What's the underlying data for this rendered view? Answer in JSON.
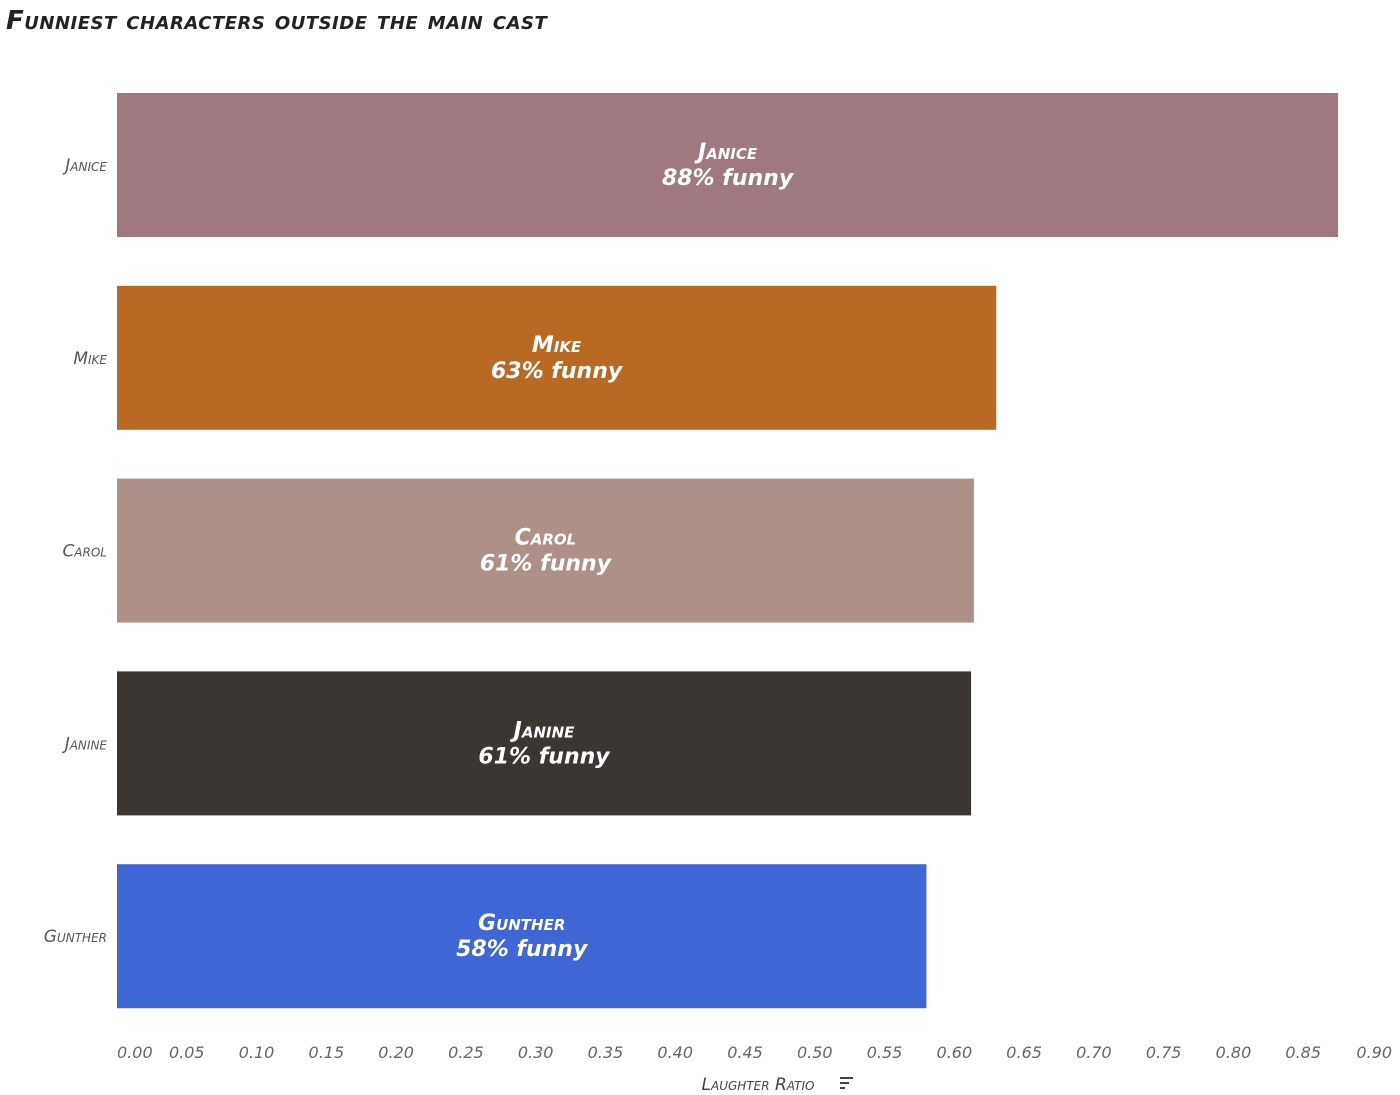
{
  "chart_data": {
    "type": "bar",
    "orientation": "horizontal",
    "title": "Funniest characters outside the main cast",
    "xlabel": "Laughter Ratio",
    "ylabel": "",
    "xlim": [
      0,
      0.9
    ],
    "ticks": [
      "0.00",
      "0.05",
      "0.10",
      "0.15",
      "0.20",
      "0.25",
      "0.30",
      "0.35",
      "0.40",
      "0.45",
      "0.50",
      "0.55",
      "0.60",
      "0.65",
      "0.70",
      "0.75",
      "0.80",
      "0.85",
      "0.90"
    ],
    "tick_values": [
      0,
      0.05,
      0.1,
      0.15,
      0.2,
      0.25,
      0.3,
      0.35,
      0.4,
      0.45,
      0.5,
      0.55,
      0.6,
      0.65,
      0.7,
      0.75,
      0.8,
      0.85,
      0.9
    ],
    "sort_icon": "sort-descending-icon",
    "categories": [
      "Janice",
      "Mike",
      "Carol",
      "Janine",
      "Gunther"
    ],
    "values": [
      0.875,
      0.63,
      0.614,
      0.612,
      0.58
    ],
    "bar_labels": [
      {
        "name": "Janice",
        "pct": "88% funny"
      },
      {
        "name": "Mike",
        "pct": "63% funny"
      },
      {
        "name": "Carol",
        "pct": "61% funny"
      },
      {
        "name": "Janine",
        "pct": "61% funny"
      },
      {
        "name": "Gunther",
        "pct": "58% funny"
      }
    ],
    "colors": [
      "#a07880",
      "#b86a24",
      "#ad9088",
      "#3b3632",
      "#3e66d4"
    ],
    "grid": false,
    "legend": "none"
  }
}
